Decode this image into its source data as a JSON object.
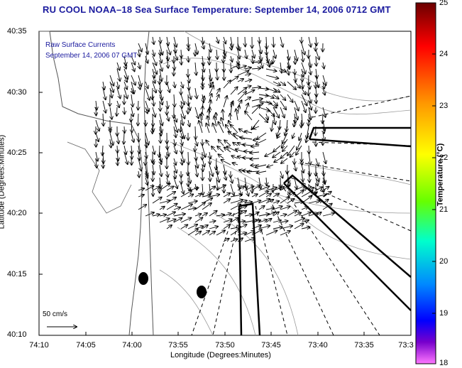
{
  "title": "RU COOL  NOAA–18  Sea Surface Temperature:  September 14, 2006 0712 GMT",
  "inset_lines": [
    "Raw Surface Currents",
    "September 14, 2006 07 GMT"
  ],
  "map": {
    "xlabel": "Longitude (Degrees:Minutes)",
    "ylabel": "Latitude (Degrees:Minutes)",
    "x_ticks": [
      "74:10",
      "74:05",
      "74:00",
      "73:55",
      "73:50",
      "73:45",
      "73:40",
      "73:35",
      "73:3"
    ],
    "y_ticks": [
      "40:35",
      "40:30",
      "40:25",
      "40:20",
      "40:15",
      "40:10"
    ],
    "scale_label": "50 cm/s"
  },
  "colorbar": {
    "label": "Temperature (°C)",
    "ticks": [
      "25",
      "24",
      "23",
      "22",
      "21",
      "20",
      "19",
      "18"
    ],
    "range": [
      18,
      25
    ],
    "colors": [
      "#ff2a2a",
      "#ff8a00",
      "#ffee00",
      "#7cff00",
      "#00ffb0",
      "#00a8ff",
      "#0000ff",
      "#ff66ff"
    ]
  }
}
